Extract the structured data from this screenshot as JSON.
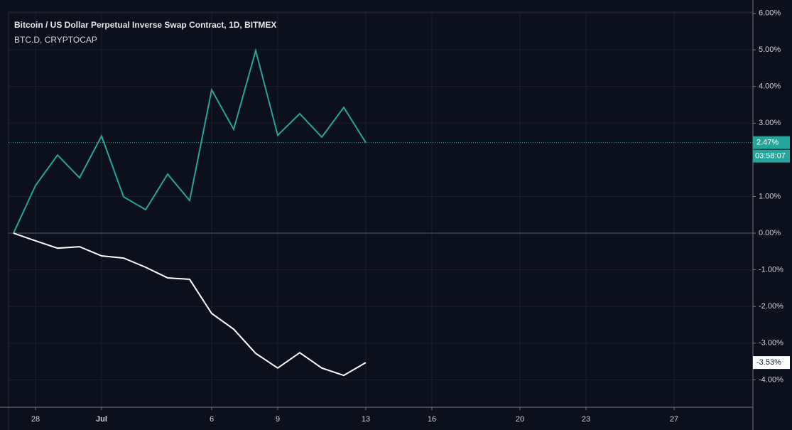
{
  "chart_data": {
    "type": "line",
    "title": "Bitcoin / US Dollar Perpetual Inverse Swap Contract, 1D, BITMEX",
    "subtitle": "BTC.D, CRYPTOCAP",
    "categories": [
      null,
      "28",
      null,
      null,
      "Jul",
      null,
      null,
      null,
      null,
      "6",
      null,
      null,
      "9",
      null,
      null,
      null,
      "13",
      null,
      null,
      "16",
      null,
      null,
      null,
      "20",
      null,
      null,
      "23",
      null,
      null,
      null,
      "27",
      null,
      null,
      null
    ],
    "series": [
      {
        "name": "Bitcoin / US Dollar Perpetual Inverse Swap Contract, 1D, BITMEX",
        "color": "#26a69a",
        "values": [
          0,
          1.3,
          2.13,
          1.51,
          2.65,
          0.99,
          0.64,
          1.61,
          0.89,
          3.91,
          2.83,
          4.98,
          2.67,
          3.26,
          2.62,
          3.43,
          2.47,
          null,
          null,
          null,
          null,
          null,
          null,
          null,
          null,
          null,
          null,
          null,
          null,
          null,
          null,
          null,
          null,
          null
        ],
        "value_labels": [
          null,
          null,
          null,
          null,
          null,
          null,
          null,
          null,
          null,
          null,
          null,
          null,
          null,
          null,
          null,
          null,
          "2.47%",
          null,
          null,
          null,
          null,
          null,
          null,
          null,
          null,
          null,
          null,
          null,
          null,
          null,
          null,
          null,
          null,
          null
        ],
        "countdown": "03:58:07"
      },
      {
        "name": "BTC.D, CRYPTOCAP",
        "color": "#ffffff",
        "values": [
          0,
          -0.21,
          -0.41,
          -0.37,
          -0.62,
          -0.68,
          -0.93,
          -1.22,
          -1.26,
          -2.19,
          -2.62,
          -3.28,
          -3.68,
          -3.26,
          -3.68,
          -3.88,
          -3.53,
          null,
          null,
          null,
          null,
          null,
          null,
          null,
          null,
          null,
          null,
          null,
          null,
          null,
          null,
          null,
          null,
          null
        ],
        "value_labels": [
          null,
          null,
          null,
          null,
          null,
          null,
          null,
          null,
          null,
          null,
          null,
          null,
          null,
          null,
          null,
          null,
          "-3.53%",
          null,
          null,
          null,
          null,
          null,
          null,
          null,
          null,
          null,
          null,
          null,
          null,
          null,
          null,
          null,
          null,
          null
        ]
      }
    ],
    "ylim": [
      -4.73,
      6.36
    ],
    "yticks": [
      {
        "value": -4,
        "label": "-4.00%"
      },
      {
        "value": -3,
        "label": "-3.00%"
      },
      {
        "value": -2,
        "label": "-2.00%"
      },
      {
        "value": -1,
        "label": "-1.00%"
      },
      {
        "value": 0,
        "label": "0.00%"
      },
      {
        "value": 1,
        "label": "1.00%"
      },
      {
        "value": 3,
        "label": "3.00%"
      },
      {
        "value": 4,
        "label": "4.00%"
      },
      {
        "value": 5,
        "label": "5.00%"
      },
      {
        "value": 6,
        "label": "6.00%"
      }
    ],
    "grid": true
  }
}
